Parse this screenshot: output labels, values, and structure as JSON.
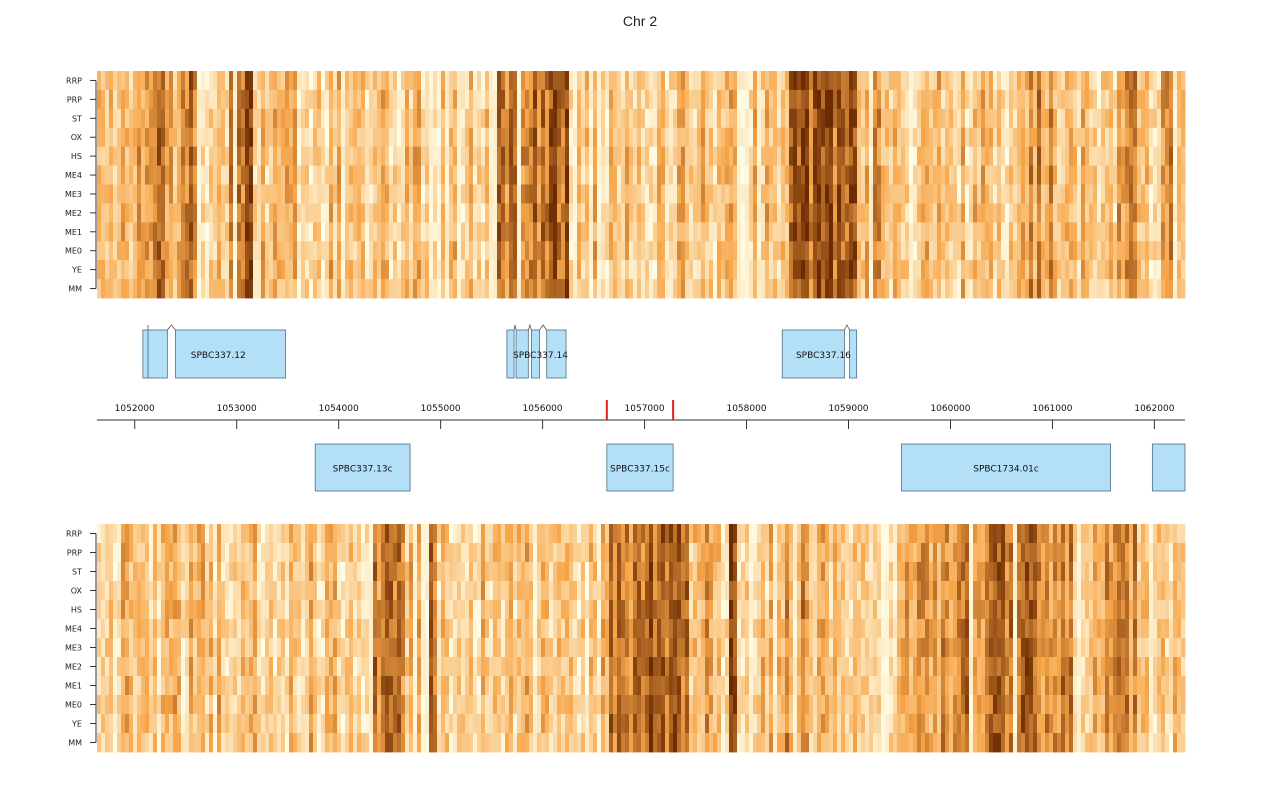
{
  "chart_data": {
    "type": "heatmap",
    "title": "Chr 2",
    "row_labels": [
      "RRP",
      "PRP",
      "ST",
      "OX",
      "HS",
      "ME4",
      "ME3",
      "ME2",
      "ME1",
      "ME0",
      "YE",
      "MM"
    ],
    "x_range": [
      1051630,
      1062300
    ],
    "x_ticks": [
      1052000,
      1053000,
      1054000,
      1055000,
      1056000,
      1057000,
      1058000,
      1059000,
      1060000,
      1061000,
      1062000
    ],
    "selected_region": [
      1056630,
      1057280
    ],
    "colors": {
      "low": "#fffde6",
      "mid": "#f7a64a",
      "high": "#6b2a00",
      "gene_fill": "#b3e0f7",
      "gene_stroke": "#4a6e85",
      "region_marker": "#e32020"
    },
    "upper_heatmap_hotspots": [
      [
        1052000,
        1052350,
        0.55
      ],
      [
        1052450,
        1052600,
        0.7
      ],
      [
        1052900,
        1053150,
        0.85
      ],
      [
        1055550,
        1056250,
        0.65
      ],
      [
        1056050,
        1056250,
        0.85
      ],
      [
        1058400,
        1059050,
        0.8
      ],
      [
        1059200,
        1059300,
        0.5
      ],
      [
        1060700,
        1061000,
        0.4
      ],
      [
        1061600,
        1061800,
        0.5
      ],
      [
        1062050,
        1062300,
        0.4
      ]
    ],
    "lower_heatmap_hotspots": [
      [
        1054300,
        1054550,
        0.6
      ],
      [
        1054550,
        1054650,
        0.75
      ],
      [
        1054800,
        1054950,
        0.65
      ],
      [
        1056650,
        1057400,
        0.6
      ],
      [
        1056900,
        1057050,
        0.8
      ],
      [
        1057500,
        1057600,
        0.45
      ],
      [
        1057790,
        1057890,
        0.95
      ],
      [
        1058350,
        1058600,
        0.4
      ],
      [
        1059500,
        1060300,
        0.5
      ],
      [
        1060300,
        1061200,
        0.6
      ],
      [
        1061500,
        1061800,
        0.45
      ]
    ],
    "genes_forward": [
      {
        "name": "SPBC337.12",
        "start": 1052350,
        "end": 1053630,
        "exons": [
          [
            1052080,
            1052130
          ],
          [
            1052130,
            1052320
          ],
          [
            1052400,
            1053480
          ]
        ]
      },
      {
        "name": "SPBC337.14",
        "start": 1055650,
        "end": 1056250,
        "exons": [
          [
            1055650,
            1055720
          ],
          [
            1055740,
            1055860
          ],
          [
            1055890,
            1055970
          ],
          [
            1056040,
            1056230
          ]
        ]
      },
      {
        "name": "SPBC337.16",
        "start": 1058350,
        "end": 1059080,
        "exons": [
          [
            1058350,
            1058960
          ],
          [
            1059010,
            1059080
          ]
        ]
      }
    ],
    "genes_reverse": [
      {
        "name": "SPBC337.13c",
        "start": 1053770,
        "end": 1054700
      },
      {
        "name": "SPBC337.15c",
        "start": 1056630,
        "end": 1057280
      },
      {
        "name": "SPBC1734.01c",
        "start": 1059520,
        "end": 1061570
      },
      {
        "name": "",
        "start": 1061980,
        "end": 1062300
      }
    ]
  }
}
